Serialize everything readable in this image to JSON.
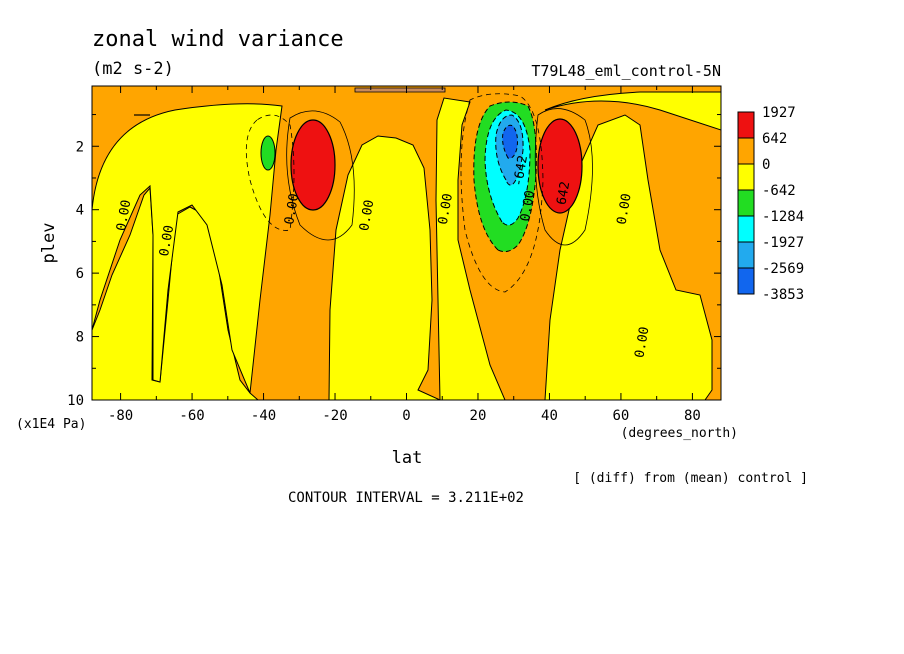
{
  "chart_data": {
    "type": "heatmap",
    "title": "zonal wind variance",
    "subtitle": "(m2 s-2)",
    "run_label": "T79L48_eml_control-5N",
    "xlabel": "lat",
    "xunit": "(degrees_north)",
    "ylabel": "plev",
    "yunit": "(x1E4 Pa)",
    "xlim": [
      -88,
      88
    ],
    "ylim": [
      10,
      0.1
    ],
    "x_ticks": [
      -80,
      -60,
      -40,
      -20,
      0,
      20,
      40,
      60,
      80
    ],
    "x_tick_labels": [
      "-80",
      "-60",
      "-40",
      "-20",
      "0",
      "20",
      "40",
      "60",
      "80"
    ],
    "y_ticks": [
      2,
      4,
      6,
      8,
      10
    ],
    "y_tick_labels": [
      "2",
      "4",
      "6",
      "8",
      "10"
    ],
    "note": "[ (diff) from (mean) control ]",
    "contour_interval_text": "CONTOUR INTERVAL = 3.211E+02",
    "legend": {
      "placement": "right",
      "bins": [
        {
          "label": "1927",
          "color": "#ee1111"
        },
        {
          "label": "642",
          "color": "#ffa500"
        },
        {
          "label": "0",
          "color": "#ffff00"
        },
        {
          "label": "-642",
          "color": "#22dd22"
        },
        {
          "label": "-1284",
          "color": "#00ffff"
        },
        {
          "label": "-1927",
          "color": "#22aaee"
        },
        {
          "label": "-2569",
          "color": "#1166ee"
        },
        {
          "label": "-3853",
          "color": ""
        }
      ]
    },
    "contour_labels": [
      {
        "text": "0.00",
        "lat": -78,
        "p": 4.2
      },
      {
        "text": "0.00",
        "lat": -66,
        "p": 5.0
      },
      {
        "text": "0.00",
        "lat": -31,
        "p": 4.0
      },
      {
        "text": "0.00",
        "lat": -10,
        "p": 4.2
      },
      {
        "text": "0.00",
        "lat": 12,
        "p": 4.0
      },
      {
        "text": "0.00",
        "lat": 35,
        "p": 3.9
      },
      {
        "text": "0.00",
        "lat": 62,
        "p": 4.0
      },
      {
        "text": "0.00",
        "lat": 67,
        "p": 8.2
      },
      {
        "text": "642",
        "lat": 45,
        "p": 3.5
      },
      {
        "text": "-642",
        "lat": 33,
        "p": 2.8
      }
    ],
    "extrema": [
      {
        "label": "positive max, SH",
        "lat": -27,
        "p": 2.4,
        "level": "1927"
      },
      {
        "label": "positive max, NH",
        "lat": 44,
        "p": 2.5,
        "level": "1927"
      },
      {
        "label": "negative min",
        "lat": 29,
        "p": 1.9,
        "level": "-2569"
      },
      {
        "label": "negative min, SH",
        "lat": -39,
        "p": 2.2,
        "level": "-642"
      }
    ]
  }
}
